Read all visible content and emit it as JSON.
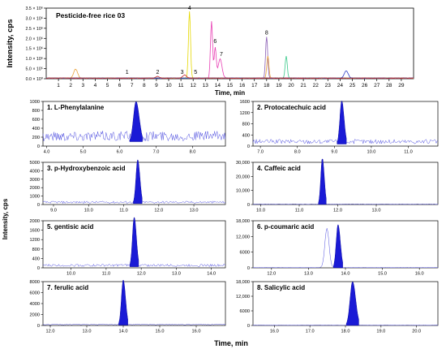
{
  "chart_data": [
    {
      "type": "line",
      "title": "Pesticide-free rice 03",
      "ylabel": "Intensity, cps",
      "xlabel": "Time, min",
      "xlim": [
        0,
        30
      ],
      "ylim": [
        0,
        3500000
      ],
      "x_ticks": [
        "1",
        "2",
        "3",
        "4",
        "5",
        "6",
        "7",
        "8",
        "9",
        "10",
        "11",
        "12",
        "13",
        "14",
        "15",
        "16",
        "17",
        "18",
        "19",
        "20",
        "21",
        "22",
        "23",
        "24",
        "25",
        "26",
        "27",
        "28",
        "29"
      ],
      "y_ticks": [
        "3.5 × 10⁶",
        "3.0 × 10⁶",
        "2.5 × 10⁶",
        "2.0 × 10⁶",
        "1.5 × 10⁶",
        "1.0 × 10⁶",
        "5.0 × 10⁵",
        "0.0 × 10⁰"
      ],
      "peak_labels": [
        {
          "label": "1",
          "x": 6.6
        },
        {
          "label": "2",
          "x": 9.1
        },
        {
          "label": "3",
          "x": 11.1
        },
        {
          "label": "4",
          "x": 11.7
        },
        {
          "label": "5",
          "x": 12.2
        },
        {
          "label": "6",
          "x": 13.8
        },
        {
          "label": "7",
          "x": 14.3
        },
        {
          "label": "8",
          "x": 18.0
        }
      ],
      "series": [
        {
          "color": "#e6d800",
          "peaks": [
            [
              11.7,
              3300000
            ]
          ]
        },
        {
          "color": "#e83fb4",
          "peaks": [
            [
              13.5,
              2800000
            ],
            [
              13.8,
              1500000
            ],
            [
              14.2,
              950000
            ]
          ]
        },
        {
          "color": "#8b5fb5",
          "peaks": [
            [
              18.0,
              2050000
            ]
          ]
        },
        {
          "color": "#e9a23b",
          "peaks": [
            [
              2.4,
              450000
            ],
            [
              18.1,
              1100000
            ]
          ]
        },
        {
          "color": "#39c98a",
          "peaks": [
            [
              19.6,
              1100000
            ]
          ]
        },
        {
          "color": "#2c3bc4",
          "peaks": [
            [
              24.5,
              350000
            ]
          ]
        },
        {
          "color": "#c8242f",
          "peaks": [
            [
              11.3,
              150000
            ],
            [
              9.1,
              80000
            ]
          ]
        }
      ]
    },
    {
      "type": "line",
      "title": "1. L-Phenylalanine",
      "xlim": [
        3.9,
        8.9
      ],
      "ylim": [
        0,
        1000
      ],
      "x_ticks": [
        "4.0",
        "5.0",
        "6.0",
        "7.0",
        "8.0"
      ],
      "y_ticks": [
        "1000",
        "800",
        "600",
        "400",
        "200",
        "0"
      ],
      "baseline": 250,
      "peak": {
        "x": 6.45,
        "y": 1000,
        "width": 0.35
      }
    },
    {
      "type": "line",
      "title": "2. Protocatechuic acid",
      "xlim": [
        6.8,
        11.8
      ],
      "ylim": [
        0,
        1600
      ],
      "x_ticks": [
        "7.0",
        "8.0",
        "9.0",
        "10.0",
        "11.0"
      ],
      "y_ticks": [
        "1600",
        "1200",
        "800",
        "400",
        "0"
      ],
      "baseline": 180,
      "peak": {
        "x": 9.2,
        "y": 1620,
        "width": 0.25
      }
    },
    {
      "type": "line",
      "title": "3. p-Hydroxybenzoic acid",
      "xlim": [
        8.7,
        13.9
      ],
      "ylim": [
        0,
        5000
      ],
      "x_ticks": [
        "9.0",
        "10.0",
        "11.0",
        "12.0",
        "13.0"
      ],
      "y_ticks": [
        "5000",
        "4000",
        "3000",
        "2000",
        "1000",
        "0"
      ],
      "baseline": 300,
      "peak": {
        "x": 11.4,
        "y": 5300,
        "width": 0.25
      }
    },
    {
      "type": "line",
      "title": "4. Caffeic acid",
      "xlim": [
        9.8,
        14.6
      ],
      "ylim": [
        0,
        30000
      ],
      "x_ticks": [
        "10.0",
        "11.0",
        "12.0",
        "13.0"
      ],
      "y_ticks": [
        "30,000",
        "20,000",
        "10,000",
        "0"
      ],
      "baseline": 300,
      "peak": {
        "x": 11.6,
        "y": 33000,
        "width": 0.2
      }
    },
    {
      "type": "line",
      "title": "5. gentisic acid",
      "xlim": [
        9.2,
        14.4
      ],
      "ylim": [
        0,
        2000
      ],
      "x_ticks": [
        "10.0",
        "11.0",
        "12.0",
        "13.0",
        "14.0"
      ],
      "y_ticks": [
        "2000",
        "1600",
        "1200",
        "800",
        "400",
        "0"
      ],
      "baseline": 120,
      "peak": {
        "x": 11.8,
        "y": 2150,
        "width": 0.25
      }
    },
    {
      "type": "line",
      "title": "6. p-coumaric acid",
      "xlim": [
        11.5,
        16.5
      ],
      "ylim": [
        0,
        18000
      ],
      "x_ticks": [
        "12.0",
        "13.0",
        "14.0",
        "15.0",
        "16.0"
      ],
      "y_ticks": [
        "18,000",
        "12,000",
        "6000",
        "0"
      ],
      "baseline": 100,
      "peak": {
        "x": 13.8,
        "y": 16500,
        "width": 0.25
      },
      "shoulder": {
        "x": 13.5,
        "y": 15000
      }
    },
    {
      "type": "line",
      "title": "7. ferulic acid",
      "xlim": [
        11.8,
        16.8
      ],
      "ylim": [
        0,
        8000
      ],
      "x_ticks": [
        "12.0",
        "13.0",
        "14.0",
        "15.0",
        "16.0"
      ],
      "y_ticks": [
        "8000",
        "6000",
        "4000",
        "2000",
        "0"
      ],
      "baseline": 200,
      "peak": {
        "x": 14.0,
        "y": 8300,
        "width": 0.25
      }
    },
    {
      "type": "line",
      "title": "8. Salicylic acid",
      "xlim": [
        15.4,
        20.6
      ],
      "ylim": [
        0,
        18000
      ],
      "x_ticks": [
        "16.0",
        "17.0",
        "18.0",
        "19.0",
        "20.0"
      ],
      "y_ticks": [
        "18,000",
        "12,000",
        "6000",
        "0"
      ],
      "baseline": 120,
      "peak": {
        "x": 18.2,
        "y": 18000,
        "width": 0.35
      }
    }
  ],
  "shared_ylabel": "Intensity, cps",
  "shared_xlabel": "Time, min"
}
